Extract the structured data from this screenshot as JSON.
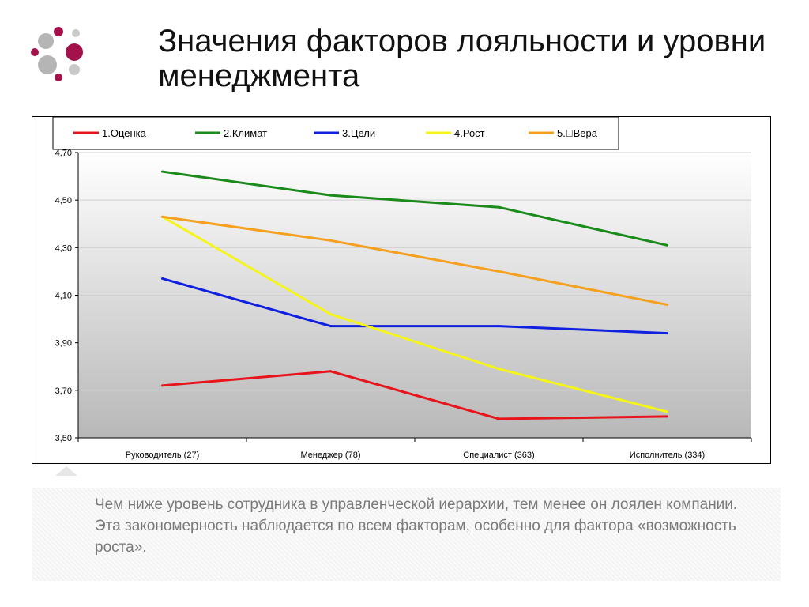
{
  "slide": {
    "title": "Значения факторов лояльности и уровни менеджмента",
    "caption": "Чем ниже уровень сотрудника в управленческой иерархии, тем менее он лоялен компании. Эта закономерность наблюдается по всем факторам, особенно для фактора «возможность роста»."
  },
  "logo": {
    "colors": [
      "#b5b5b5",
      "#a3124a",
      "#c9c9c9"
    ]
  },
  "chart_data": {
    "type": "line",
    "title": "",
    "xlabel": "",
    "ylabel": "",
    "categories": [
      "Руководитель (27)",
      "Менеджер (78)",
      "Специалист (363)",
      "Исполнитель (334)"
    ],
    "ylim": [
      3.5,
      4.7
    ],
    "yticks": [
      3.5,
      3.7,
      3.9,
      4.1,
      4.3,
      4.5,
      4.7
    ],
    "ytick_labels": [
      "3,50",
      "3,70",
      "3,90",
      "4,10",
      "4,30",
      "4,50",
      "4,70"
    ],
    "grid": true,
    "legend_position": "top",
    "series": [
      {
        "name": "1.Оценка",
        "color": "#e8141c",
        "values": [
          3.72,
          3.78,
          3.58,
          3.59
        ]
      },
      {
        "name": "2.Климат",
        "color": "#1a8a1a",
        "values": [
          4.62,
          4.52,
          4.47,
          4.31
        ]
      },
      {
        "name": "3.Цели",
        "color": "#1020e0",
        "values": [
          4.17,
          3.97,
          3.97,
          3.94
        ]
      },
      {
        "name": "4.Рост",
        "color": "#f5f51a",
        "values": [
          4.43,
          4.02,
          3.79,
          3.61
        ]
      },
      {
        "name": "5.Вера",
        "color": "#f5a01e",
        "values": [
          4.43,
          4.33,
          4.2,
          4.06
        ]
      }
    ]
  }
}
